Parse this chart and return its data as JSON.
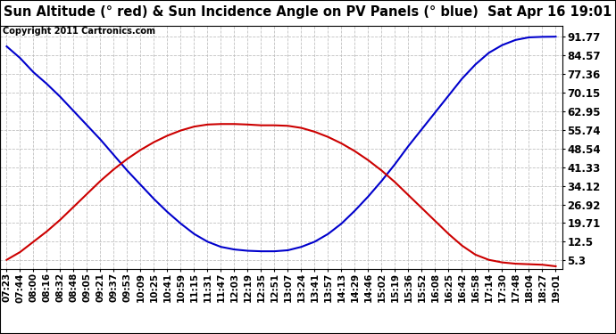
{
  "title": "Sun Altitude (° red) & Sun Incidence Angle on PV Panels (° blue)  Sat Apr 16 19:01",
  "copyright": "Copyright 2011 Cartronics.com",
  "yticks": [
    5.3,
    12.5,
    19.71,
    26.92,
    34.12,
    41.33,
    48.54,
    55.74,
    62.95,
    70.15,
    77.36,
    84.57,
    91.77
  ],
  "ymin": 2.0,
  "ymax": 96.0,
  "blue_color": "#0000cc",
  "red_color": "#cc0000",
  "bg_color": "#ffffff",
  "grid_color": "#c0c0c0",
  "title_fontsize": 10.5,
  "copyright_fontsize": 7.0,
  "tick_fontsize": 7.5,
  "ytick_fontsize": 8.5,
  "x_times": [
    "07:23",
    "07:44",
    "08:00",
    "08:16",
    "08:32",
    "08:48",
    "09:05",
    "09:21",
    "09:37",
    "09:53",
    "10:09",
    "10:25",
    "10:41",
    "10:59",
    "11:15",
    "11:31",
    "11:47",
    "12:03",
    "12:19",
    "12:35",
    "12:51",
    "13:07",
    "13:24",
    "13:41",
    "13:57",
    "14:13",
    "14:29",
    "14:46",
    "15:02",
    "15:19",
    "15:36",
    "15:52",
    "16:08",
    "16:25",
    "16:42",
    "16:58",
    "17:14",
    "17:30",
    "17:48",
    "18:04",
    "18:27",
    "19:01"
  ],
  "blue_values": [
    88.0,
    83.5,
    78.0,
    73.5,
    68.5,
    63.0,
    57.5,
    52.0,
    46.0,
    40.0,
    34.5,
    29.0,
    24.0,
    19.5,
    15.5,
    12.5,
    10.5,
    9.5,
    9.0,
    8.8,
    8.8,
    9.2,
    10.5,
    12.5,
    15.5,
    19.5,
    24.5,
    30.0,
    36.0,
    42.5,
    49.5,
    56.0,
    62.5,
    69.0,
    75.5,
    81.0,
    85.5,
    88.5,
    90.5,
    91.5,
    91.7,
    91.77
  ],
  "red_values": [
    5.5,
    8.5,
    12.5,
    16.5,
    21.0,
    26.0,
    31.0,
    36.0,
    40.5,
    44.5,
    48.0,
    51.0,
    53.5,
    55.5,
    57.0,
    57.8,
    58.0,
    58.0,
    57.8,
    57.5,
    57.5,
    57.3,
    56.5,
    55.0,
    53.0,
    50.5,
    47.5,
    44.0,
    40.0,
    35.5,
    30.5,
    25.5,
    20.5,
    15.5,
    11.0,
    7.5,
    5.5,
    4.5,
    4.0,
    3.8,
    3.6,
    3.0
  ]
}
